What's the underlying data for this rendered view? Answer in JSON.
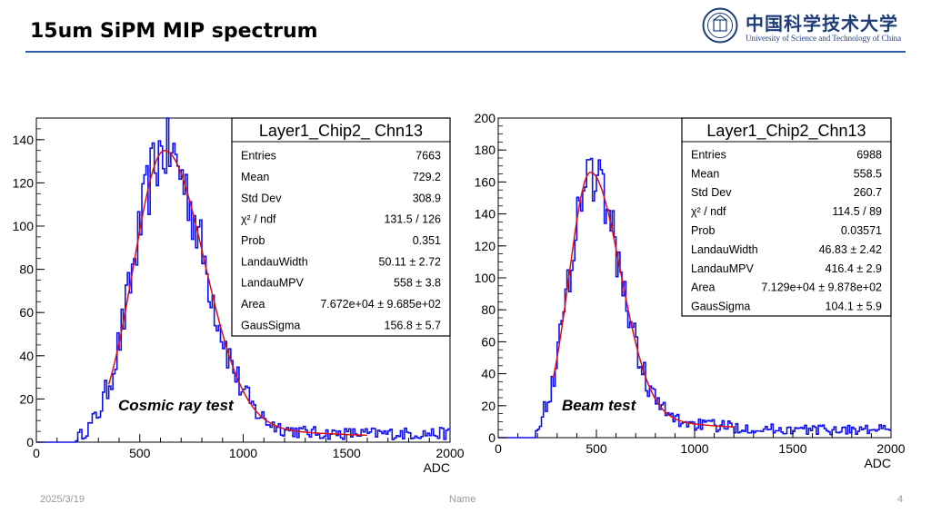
{
  "slide": {
    "title": "15um SiPM MIP spectrum",
    "logo": {
      "cn": "中国科学技术大学",
      "en": "University of Science and Technology of China"
    },
    "footer": {
      "date": "2025/3/19",
      "name": "Name",
      "page": "4"
    }
  },
  "colors": {
    "hist": "#1010ee",
    "fit": "#dd1111",
    "rule": "#2f5da8"
  },
  "chart_data": [
    {
      "type": "histogram",
      "xlim": [
        0,
        2000
      ],
      "ylim": [
        0,
        150
      ],
      "xticks": [
        0,
        500,
        1000,
        1500,
        2000
      ],
      "yticks": [
        0,
        20,
        40,
        60,
        80,
        100,
        120,
        140
      ],
      "xlabel": "ADC",
      "annotation": "Cosmic ray test",
      "fit": {
        "peak_x": 620,
        "peak_y": 135,
        "sigma_left": 150,
        "sigma_right": 190,
        "tail": 0.07,
        "x_start": 350,
        "x_end": 1600
      },
      "hist": {
        "onset_x": 190,
        "end_x": 2000,
        "baseline": 4
      },
      "stats": {
        "title": "Layer1_Chip2_ Chn13",
        "rows": [
          {
            "label": "Entries",
            "value": "7663"
          },
          {
            "label": "Mean",
            "value": "729.2"
          },
          {
            "label": "Std Dev",
            "value": "308.9"
          },
          {
            "label": "χ² / ndf",
            "value": "131.5 / 126"
          },
          {
            "label": "Prob",
            "value": "0.351"
          },
          {
            "label": "LandauWidth",
            "value": "50.11 ± 2.72"
          },
          {
            "label": "LandauMPV",
            "value": "558 ± 3.8"
          },
          {
            "label": "Area",
            "value": "7.672e+04 ± 9.685e+02"
          },
          {
            "label": "GausSigma",
            "value": "156.8 ± 5.7"
          }
        ]
      }
    },
    {
      "type": "histogram",
      "xlim": [
        0,
        2000
      ],
      "ylim": [
        0,
        200
      ],
      "xticks": [
        0,
        500,
        1000,
        1500,
        2000
      ],
      "yticks": [
        0,
        20,
        40,
        60,
        80,
        100,
        120,
        140,
        160,
        180,
        200
      ],
      "xlabel": "ADC",
      "annotation": "Beam test",
      "fit": {
        "peak_x": 470,
        "peak_y": 166,
        "sigma_left": 110,
        "sigma_right": 150,
        "tail": 0.09,
        "x_start": 280,
        "x_end": 1200
      },
      "hist": {
        "onset_x": 190,
        "end_x": 2000,
        "baseline": 5
      },
      "stats": {
        "title": "Layer1_Chip2_Chn13",
        "rows": [
          {
            "label": "Entries",
            "value": "6988"
          },
          {
            "label": "Mean",
            "value": "558.5"
          },
          {
            "label": "Std Dev",
            "value": "260.7"
          },
          {
            "label": "χ² / ndf",
            "value": "114.5 / 89"
          },
          {
            "label": "Prob",
            "value": "0.03571"
          },
          {
            "label": "LandauWidth",
            "value": "46.83 ± 2.42"
          },
          {
            "label": "LandauMPV",
            "value": "416.4 ± 2.9"
          },
          {
            "label": "Area",
            "value": "7.129e+04 ± 9.878e+02"
          },
          {
            "label": "GausSigma",
            "value": "104.1 ± 5.9"
          }
        ]
      }
    }
  ]
}
